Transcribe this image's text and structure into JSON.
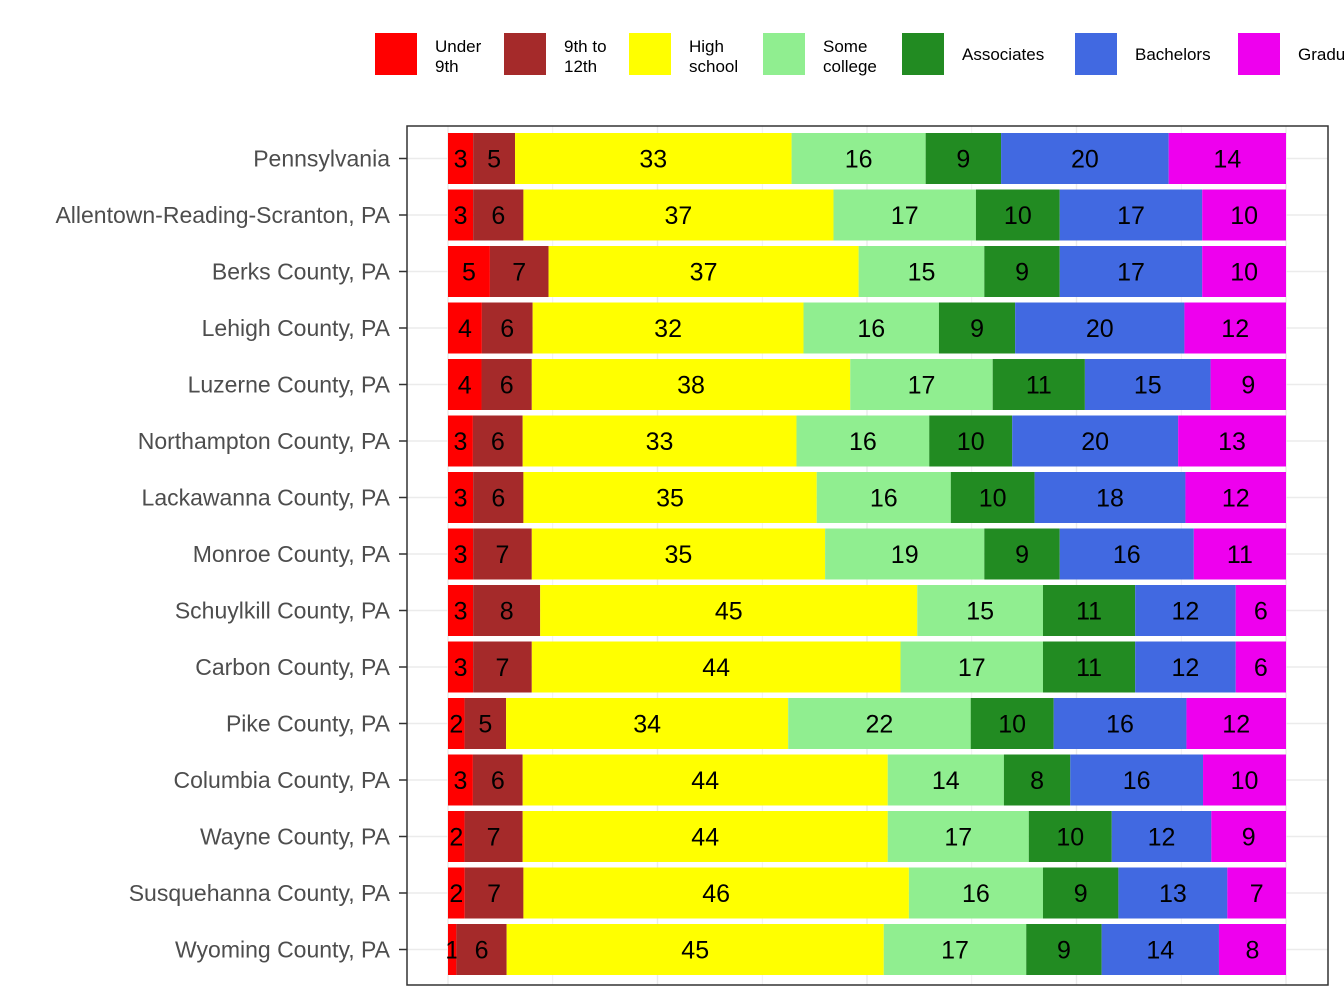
{
  "chart_data": {
    "type": "bar",
    "orientation": "horizontal",
    "stacked": "percent",
    "title": "",
    "xlabel": "",
    "ylabel": "",
    "legend_position": "top",
    "grid": true,
    "categories": [
      "Pennsylvania",
      "Allentown-Reading-Scranton, PA",
      "Berks County, PA",
      "Lehigh County, PA",
      "Luzerne County, PA",
      "Northampton County, PA",
      "Lackawanna County, PA",
      "Monroe County, PA",
      "Schuylkill County, PA",
      "Carbon County, PA",
      "Pike County, PA",
      "Columbia County, PA",
      "Wayne County, PA",
      "Susquehanna County, PA",
      "Wyoming County, PA"
    ],
    "series": [
      {
        "name": "Under\n9th",
        "color": "#ff0000",
        "values": [
          3,
          3,
          5,
          4,
          4,
          3,
          3,
          3,
          3,
          3,
          2,
          3,
          2,
          2,
          1
        ]
      },
      {
        "name": "9th to\n12th",
        "color": "#a52a2a",
        "values": [
          5,
          6,
          7,
          6,
          6,
          6,
          6,
          7,
          8,
          7,
          5,
          6,
          7,
          7,
          6
        ]
      },
      {
        "name": "High\nschool",
        "color": "#ffff00",
        "values": [
          33,
          37,
          37,
          32,
          38,
          33,
          35,
          35,
          45,
          44,
          34,
          44,
          44,
          46,
          45
        ]
      },
      {
        "name": "Some\ncollege",
        "color": "#90ee90",
        "values": [
          16,
          17,
          15,
          16,
          17,
          16,
          16,
          19,
          15,
          17,
          22,
          14,
          17,
          16,
          17
        ]
      },
      {
        "name": "Associates",
        "color": "#228b22",
        "values": [
          9,
          10,
          9,
          9,
          11,
          10,
          10,
          9,
          11,
          11,
          10,
          8,
          10,
          9,
          9
        ]
      },
      {
        "name": "Bachelors",
        "color": "#4169e1",
        "values": [
          20,
          17,
          17,
          20,
          15,
          20,
          18,
          16,
          12,
          12,
          16,
          16,
          12,
          13,
          14
        ]
      },
      {
        "name": "Graduate",
        "color": "#ee00ee",
        "values": [
          14,
          10,
          10,
          12,
          9,
          13,
          12,
          11,
          6,
          6,
          12,
          10,
          9,
          7,
          8
        ]
      }
    ]
  }
}
